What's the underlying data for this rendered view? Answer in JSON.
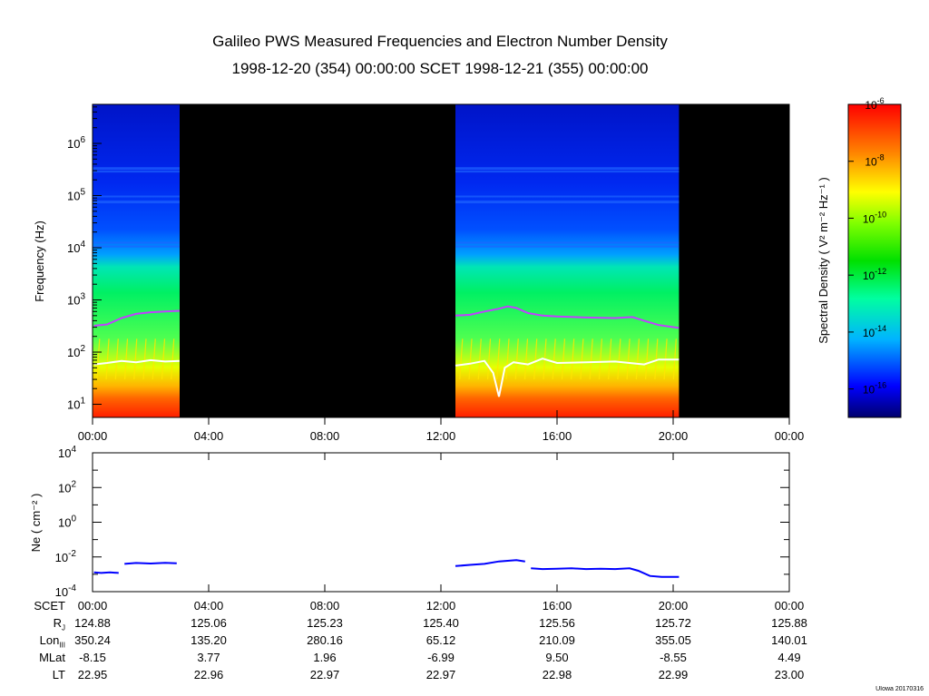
{
  "title": "Galileo PWS Measured Frequencies and Electron Number Density",
  "subtitle": "1998-12-20 (354) 00:00:00 SCET 1998-12-21 (355) 00:00:00",
  "stamp": "UIowa 20170316",
  "chart_data": [
    {
      "type": "heatmap",
      "name": "spectrogram",
      "ylabel": "Frequency (Hz)",
      "yscale": "log",
      "ylim": [
        5.6,
        5600000
      ],
      "y_ticks": [
        "10^1",
        "10^2",
        "10^3",
        "10^4",
        "10^5",
        "10^6"
      ],
      "x_ticks": [
        "00:00",
        "04:00",
        "08:00",
        "12:00",
        "16:00",
        "20:00",
        "00:00"
      ],
      "xlim_hours": [
        0,
        24
      ],
      "data_intervals_hours": [
        [
          0.0,
          3.0
        ],
        [
          12.5,
          20.2
        ]
      ],
      "no_data_color": "#000000",
      "colorbar": {
        "label": "Spectral Density ( V² m⁻² Hz⁻¹ )",
        "scale": "log",
        "range": [
          1e-17,
          1e-06
        ],
        "ticks": [
          "10^-6",
          "10^-8",
          "10^-10",
          "10^-12",
          "10^-14",
          "10^-16"
        ],
        "colors": [
          "#00007a",
          "#0000ff",
          "#00c8ff",
          "#00ff80",
          "#00d000",
          "#ffff00",
          "#ff8000",
          "#ff0000"
        ]
      },
      "overlays": [
        {
          "name": "upper hybrid line",
          "color": "#c040ff",
          "points": [
            [
              0.05,
              320
            ],
            [
              0.5,
              340
            ],
            [
              1.0,
              450
            ],
            [
              1.5,
              540
            ],
            [
              2.0,
              580
            ],
            [
              2.5,
              600
            ],
            [
              3.0,
              620
            ],
            [
              12.5,
              500
            ],
            [
              13.0,
              520
            ],
            [
              13.5,
              600
            ],
            [
              14.0,
              680
            ],
            [
              14.3,
              750
            ],
            [
              14.6,
              700
            ],
            [
              15.0,
              560
            ],
            [
              15.5,
              500
            ],
            [
              16.0,
              480
            ],
            [
              17.0,
              460
            ],
            [
              18.0,
              450
            ],
            [
              18.6,
              470
            ],
            [
              19.0,
              400
            ],
            [
              19.5,
              330
            ],
            [
              20.2,
              290
            ]
          ]
        },
        {
          "name": "plasma frequency line",
          "color": "#ffffff",
          "points": [
            [
              0.05,
              58
            ],
            [
              0.5,
              62
            ],
            [
              1.0,
              68
            ],
            [
              1.5,
              64
            ],
            [
              2.0,
              70
            ],
            [
              2.5,
              66
            ],
            [
              3.0,
              68
            ],
            [
              12.5,
              55
            ],
            [
              13.0,
              60
            ],
            [
              13.5,
              68
            ],
            [
              13.8,
              40
            ],
            [
              14.0,
              14
            ],
            [
              14.2,
              50
            ],
            [
              14.5,
              64
            ],
            [
              15.0,
              58
            ],
            [
              15.5,
              75
            ],
            [
              16.0,
              62
            ],
            [
              17.0,
              64
            ],
            [
              18.0,
              66
            ],
            [
              18.5,
              62
            ],
            [
              19.0,
              58
            ],
            [
              19.5,
              72
            ],
            [
              20.2,
              72
            ]
          ]
        }
      ]
    },
    {
      "type": "line",
      "name": "electron density",
      "ylabel": "Ne ( cm⁻² )",
      "yscale": "log",
      "ylim": [
        0.0001,
        10000
      ],
      "y_ticks": [
        "10^4",
        "10^2",
        "10^0",
        "10^-2",
        "10^-4"
      ],
      "x_ticks": [
        "00:00",
        "04:00",
        "08:00",
        "12:00",
        "16:00",
        "20:00",
        "00:00"
      ],
      "series_color": "#0000ff",
      "segments": [
        [
          [
            0.05,
            0.0013
          ],
          [
            0.3,
            0.0012
          ],
          [
            0.6,
            0.0013
          ],
          [
            0.9,
            0.0012
          ]
        ],
        [
          [
            1.1,
            0.004
          ],
          [
            1.5,
            0.0045
          ],
          [
            2.0,
            0.0042
          ],
          [
            2.5,
            0.0046
          ],
          [
            2.9,
            0.0043
          ]
        ],
        [
          [
            12.5,
            0.003
          ],
          [
            13.0,
            0.0035
          ],
          [
            13.5,
            0.004
          ],
          [
            14.0,
            0.0055
          ],
          [
            14.3,
            0.006
          ],
          [
            14.6,
            0.0065
          ],
          [
            14.9,
            0.0055
          ]
        ],
        [
          [
            15.1,
            0.0022
          ],
          [
            15.5,
            0.002
          ],
          [
            16.0,
            0.0021
          ],
          [
            16.5,
            0.0022
          ],
          [
            17.0,
            0.002
          ],
          [
            17.5,
            0.0021
          ],
          [
            18.0,
            0.002
          ],
          [
            18.5,
            0.0022
          ],
          [
            18.8,
            0.0016
          ],
          [
            19.2,
            0.0008
          ],
          [
            19.6,
            0.0007
          ],
          [
            20.2,
            0.0007
          ]
        ]
      ]
    }
  ],
  "ephemeris": {
    "rows": [
      {
        "label": "SCET",
        "values": [
          "00:00",
          "04:00",
          "08:00",
          "12:00",
          "16:00",
          "20:00",
          "00:00"
        ]
      },
      {
        "label": "R_J",
        "values": [
          "124.88",
          "125.06",
          "125.23",
          "125.40",
          "125.56",
          "125.72",
          "125.88"
        ]
      },
      {
        "label": "Lon_III",
        "values": [
          "350.24",
          "135.20",
          "280.16",
          "65.12",
          "210.09",
          "355.05",
          "140.01"
        ]
      },
      {
        "label": "MLat",
        "values": [
          "-8.15",
          "3.77",
          "1.96",
          "-6.99",
          "9.50",
          "-8.55",
          "4.49"
        ]
      },
      {
        "label": "LT",
        "values": [
          "22.95",
          "22.96",
          "22.97",
          "22.97",
          "22.98",
          "22.99",
          "23.00"
        ]
      }
    ]
  }
}
